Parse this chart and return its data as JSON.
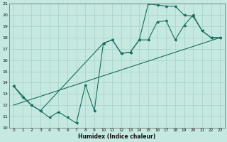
{
  "xlabel": "Humidex (Indice chaleur)",
  "bg_color": "#c5e8e0",
  "grid_color": "#aad4cc",
  "line_color": "#1a6e60",
  "line1_x": [
    0,
    1,
    2,
    3,
    4,
    5,
    6,
    7,
    8,
    9,
    10,
    11,
    12,
    13,
    14,
    15,
    16,
    17,
    18,
    19,
    20,
    21,
    22,
    23
  ],
  "line1_y": [
    13.7,
    12.7,
    12.0,
    11.5,
    10.9,
    11.4,
    10.9,
    10.4,
    13.8,
    11.5,
    17.5,
    17.8,
    16.6,
    16.7,
    17.8,
    17.8,
    19.4,
    19.5,
    17.8,
    19.1,
    20.0,
    18.6,
    18.0,
    18.0
  ],
  "line2_x": [
    0,
    2,
    3,
    10,
    11,
    12,
    13,
    14,
    15,
    16,
    17,
    18,
    19,
    20,
    21,
    22,
    23
  ],
  "line2_y": [
    13.7,
    12.0,
    11.5,
    17.5,
    17.8,
    16.6,
    16.7,
    17.8,
    21.0,
    20.9,
    20.8,
    20.8,
    20.0,
    19.9,
    18.6,
    18.0,
    18.0
  ],
  "line3_x": [
    0,
    23
  ],
  "line3_y": [
    12.0,
    18.0
  ],
  "ylim": [
    10,
    21
  ],
  "xlim": [
    -0.5,
    23.5
  ],
  "yticks": [
    10,
    11,
    12,
    13,
    14,
    15,
    16,
    17,
    18,
    19,
    20,
    21
  ],
  "xticks": [
    0,
    1,
    2,
    3,
    4,
    5,
    6,
    7,
    8,
    9,
    10,
    11,
    12,
    13,
    14,
    15,
    16,
    17,
    18,
    19,
    20,
    21,
    22,
    23
  ]
}
